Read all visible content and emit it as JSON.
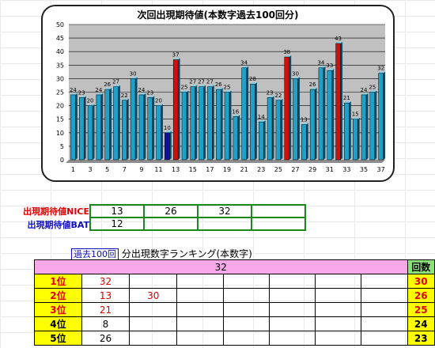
{
  "chart": {
    "title": "次回出現期待値(本数字過去100回分)"
  },
  "chart_data": {
    "type": "bar",
    "title": "次回出現期待値(本数字過去100回分)",
    "categories": [
      1,
      2,
      3,
      4,
      5,
      6,
      7,
      8,
      9,
      10,
      11,
      12,
      13,
      14,
      15,
      16,
      17,
      18,
      19,
      20,
      21,
      22,
      23,
      24,
      25,
      26,
      27,
      28,
      29,
      30,
      31,
      32,
      33,
      34,
      35,
      36,
      37
    ],
    "x_tick_labels": [
      "1",
      "3",
      "5",
      "7",
      "9",
      "11",
      "13",
      "15",
      "17",
      "19",
      "21",
      "23",
      "25",
      "27",
      "29",
      "31",
      "33",
      "35",
      "37"
    ],
    "values": [
      24,
      23,
      20,
      24,
      26,
      27,
      22,
      30,
      24,
      23,
      20,
      10,
      37,
      25,
      27,
      27,
      27,
      26,
      25,
      16,
      34,
      28,
      14,
      23,
      22,
      38,
      30,
      13,
      26,
      34,
      33,
      43,
      21,
      15,
      24,
      25,
      32
    ],
    "ylim": [
      0,
      50
    ],
    "yticks": [
      0,
      5,
      10,
      15,
      20,
      25,
      30,
      35,
      40,
      45,
      50
    ],
    "grid": true,
    "colors": {
      "normal": "#1ea0c8",
      "highlight_red": "#cc1111",
      "highlight_blue": "#1010a0"
    },
    "red_bars": [
      13,
      26,
      32
    ],
    "blue_bars": [
      12
    ]
  },
  "expect": {
    "nice_label": "出現期待値NICE",
    "bat_label": "出現期待値BAT",
    "nice_values": [
      "13",
      "26",
      "32",
      ""
    ],
    "bat_values": [
      "12",
      "",
      "",
      ""
    ]
  },
  "ranking": {
    "caption_prefix": "過去100回",
    "caption_rest": " 分出現数字ランキング(本数字)",
    "top_value": "32",
    "count_header": "回数",
    "rows": [
      {
        "rank": "1位",
        "values": [
          "32",
          "",
          "",
          "",
          "",
          "",
          ""
        ],
        "count": "30",
        "red": true
      },
      {
        "rank": "2位",
        "values": [
          "13",
          "30",
          "",
          "",
          "",
          "",
          ""
        ],
        "count": "26",
        "red": true
      },
      {
        "rank": "3位",
        "values": [
          "21",
          "",
          "",
          "",
          "",
          "",
          ""
        ],
        "count": "25",
        "red": true
      },
      {
        "rank": "4位",
        "values": [
          "8",
          "",
          "",
          "",
          "",
          "",
          ""
        ],
        "count": "24",
        "red": false
      },
      {
        "rank": "5位",
        "values": [
          "26",
          "",
          "",
          "",
          "",
          "",
          ""
        ],
        "count": "23",
        "red": false
      }
    ]
  }
}
